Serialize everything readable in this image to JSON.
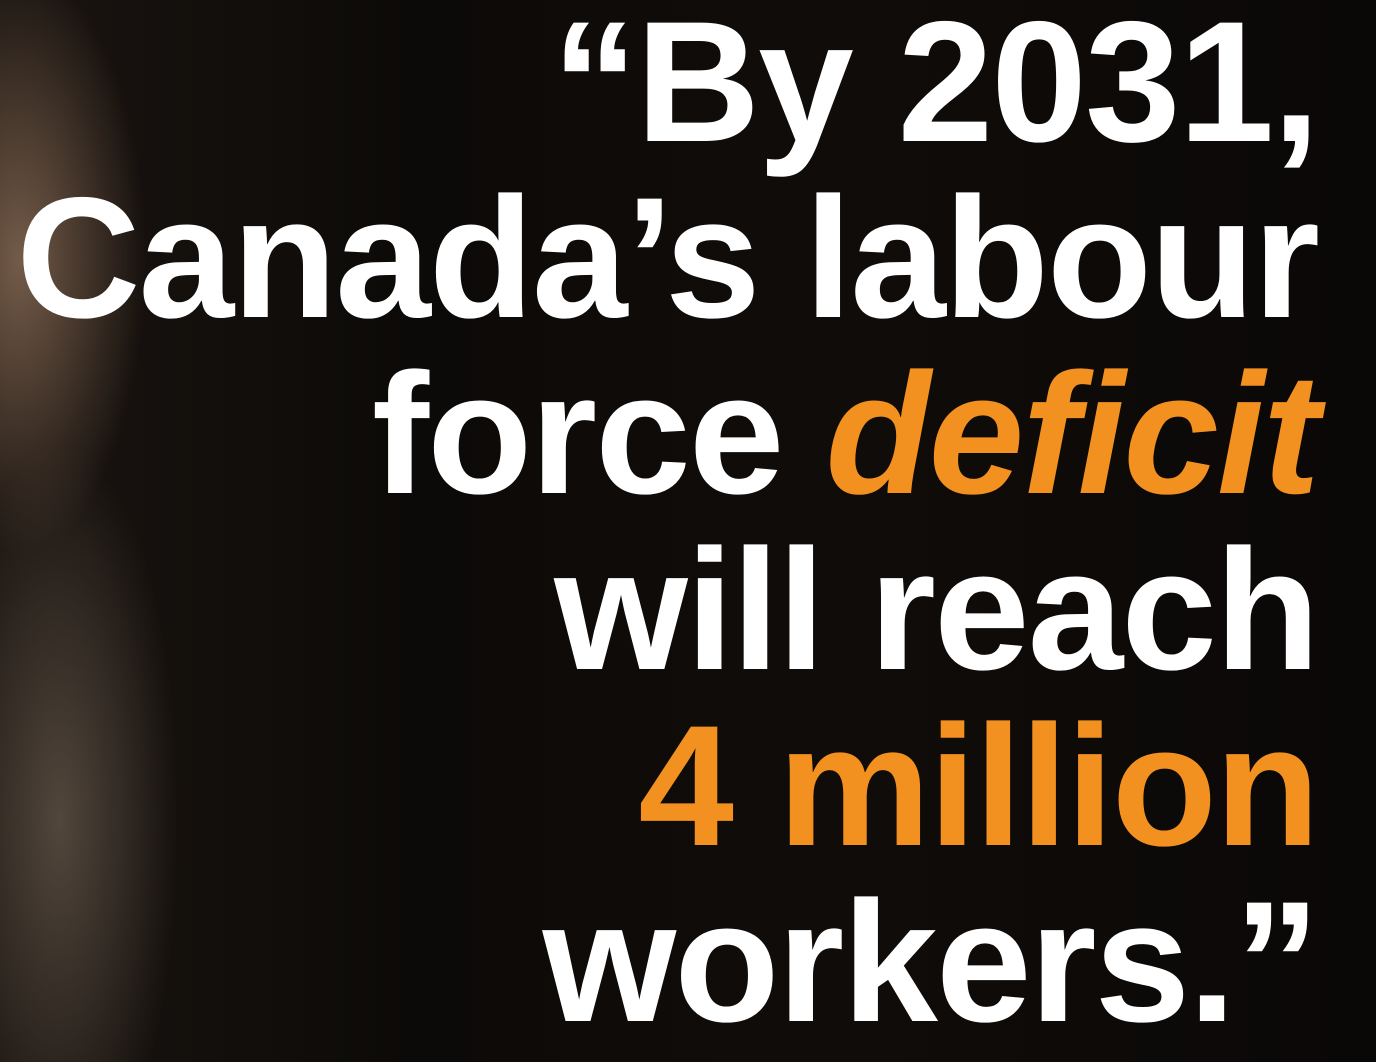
{
  "quote": {
    "lines": [
      [
        "“By 2031,"
      ],
      [
        "Canada’s labour"
      ],
      [
        "force",
        "deficit"
      ],
      [
        "will reach"
      ],
      [
        "4 million"
      ],
      [
        "workers.”"
      ]
    ]
  }
}
